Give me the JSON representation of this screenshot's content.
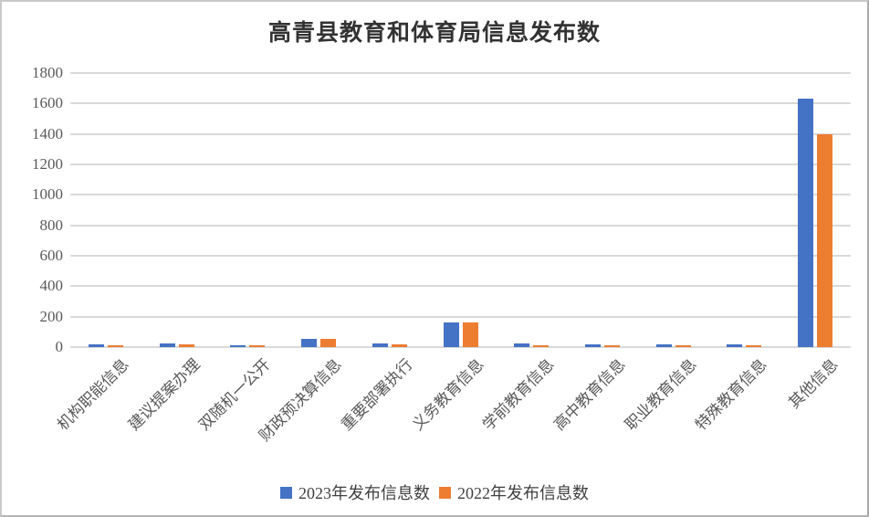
{
  "page": {
    "background": "#ffffff",
    "border_color": "#c9c9c9"
  },
  "chart_data": {
    "type": "bar",
    "title": "高青县教育和体育局信息发布数",
    "xlabel": "",
    "ylabel": "",
    "categories": [
      "机构职能信息",
      "建议提案办理",
      "双随机一公开",
      "财政预决算信息",
      "重要部署执行",
      "义务教育信息",
      "学前教育信息",
      "高中教育信息",
      "职业教育信息",
      "特殊教育信息",
      "其他信息"
    ],
    "series": [
      {
        "name": "2023年发布信息数",
        "color": "#4472C4",
        "values": [
          20,
          22,
          13,
          55,
          25,
          160,
          22,
          15,
          15,
          15,
          1630
        ]
      },
      {
        "name": "2022年发布信息数",
        "color": "#ED7D31",
        "values": [
          10,
          18,
          10,
          52,
          20,
          160,
          12,
          13,
          14,
          13,
          1400
        ]
      }
    ],
    "ylim": [
      0,
      1800
    ],
    "ytick_step": 200,
    "yticks": [
      0,
      200,
      400,
      600,
      800,
      1000,
      1200,
      1400,
      1600,
      1800
    ],
    "grid": true,
    "gridline_color": "#D9D9D9",
    "tick_label_color": "#595959",
    "title_color": "#333333",
    "legend_text_color": "#404040",
    "legend_position": "bottom"
  }
}
